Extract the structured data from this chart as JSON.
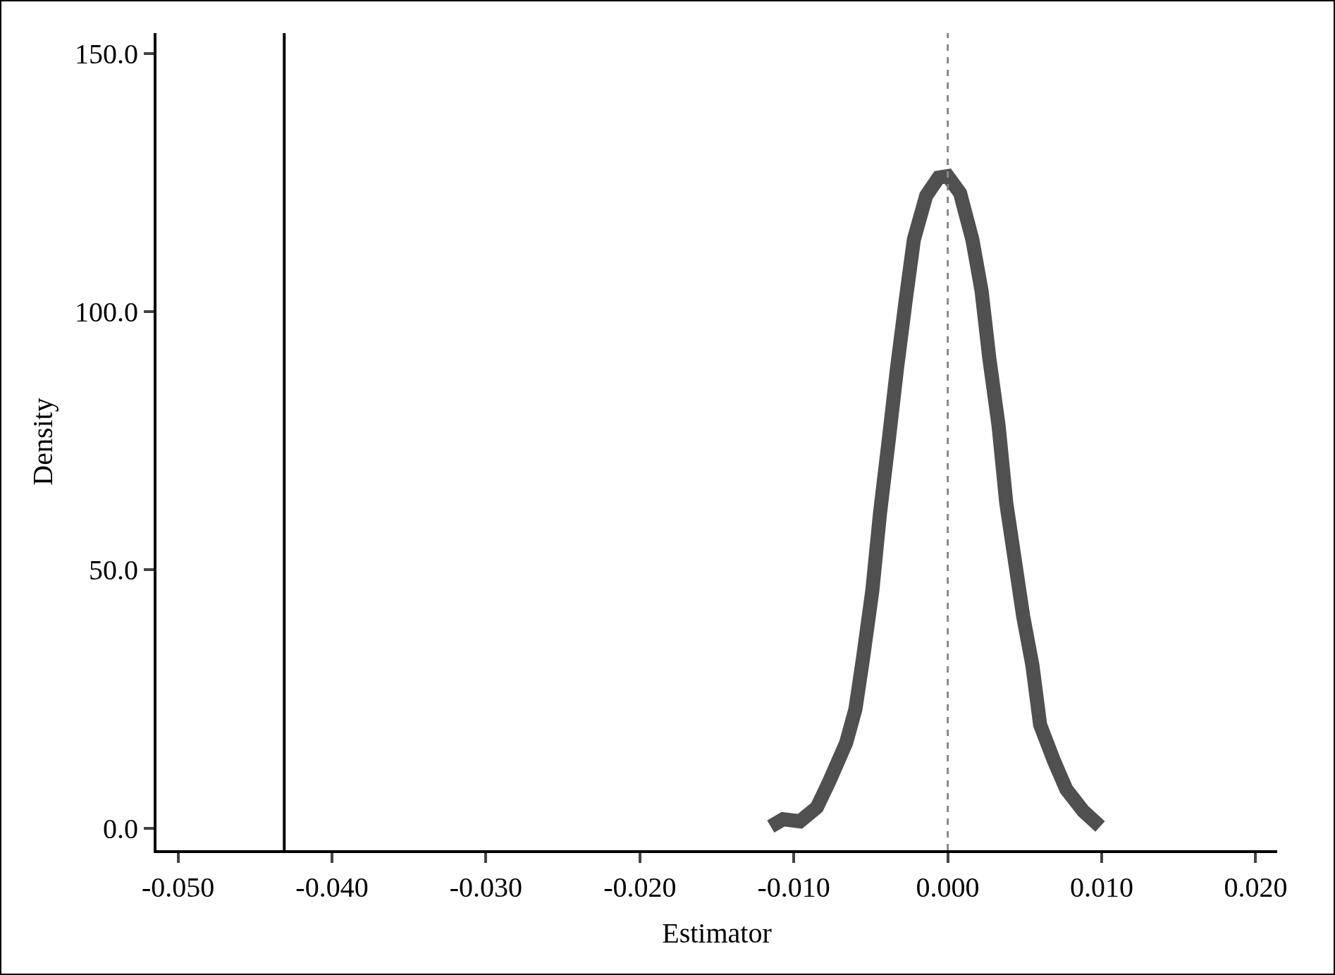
{
  "chart_data": {
    "type": "line",
    "xlabel": "Estimator",
    "ylabel": "Density",
    "x": [
      -0.0115,
      -0.0107,
      -0.0096,
      -0.0085,
      -0.0077,
      -0.0066,
      -0.006,
      -0.0055,
      -0.0049,
      -0.0044,
      -0.0038,
      -0.0033,
      -0.0027,
      -0.0022,
      -0.0014,
      -0.0006,
      0,
      0.0008,
      0.0016,
      0.0022,
      0.0027,
      0.0033,
      0.0038,
      0.0044,
      0.0049,
      0.0055,
      0.006,
      0.0069,
      0.0077,
      0.0088,
      0.0099
    ],
    "series": [
      {
        "color": "#505050",
        "values": [
          0.3,
          1.7,
          1.3,
          4,
          9,
          16.5,
          23,
          33,
          46,
          61,
          76,
          89,
          103,
          114,
          122.5,
          126,
          126.3,
          123,
          114,
          104,
          91,
          78,
          63,
          51,
          41,
          31.5,
          20,
          13,
          7.5,
          3.3,
          0.3
        ]
      }
    ],
    "xlim": [
      -0.0514,
      0.0214
    ],
    "ylim": [
      -4.3,
      154
    ],
    "xticks": [
      {
        "value": -0.05,
        "label": "-0.050"
      },
      {
        "value": -0.04,
        "label": "-0.040"
      },
      {
        "value": -0.03,
        "label": "-0.030"
      },
      {
        "value": -0.02,
        "label": "-0.020"
      },
      {
        "value": -0.01,
        "label": "-0.010"
      },
      {
        "value": 0,
        "label": "0.000"
      },
      {
        "value": 0.01,
        "label": "0.010"
      },
      {
        "value": 0.02,
        "label": "0.020"
      }
    ],
    "yticks": [
      {
        "value": 0,
        "label": "0.0"
      },
      {
        "value": 50,
        "label": "50.0"
      },
      {
        "value": 100,
        "label": "100.0"
      },
      {
        "value": 150,
        "label": "150.0"
      }
    ],
    "ref_lines": [
      {
        "axis": "x",
        "value": -0.0431,
        "color": "#000000",
        "line_style": "solid"
      },
      {
        "axis": "x",
        "value": 0,
        "color": "#888888",
        "line_style": "dashed"
      }
    ],
    "grid": false,
    "marker": "none",
    "line_style": "solid"
  }
}
